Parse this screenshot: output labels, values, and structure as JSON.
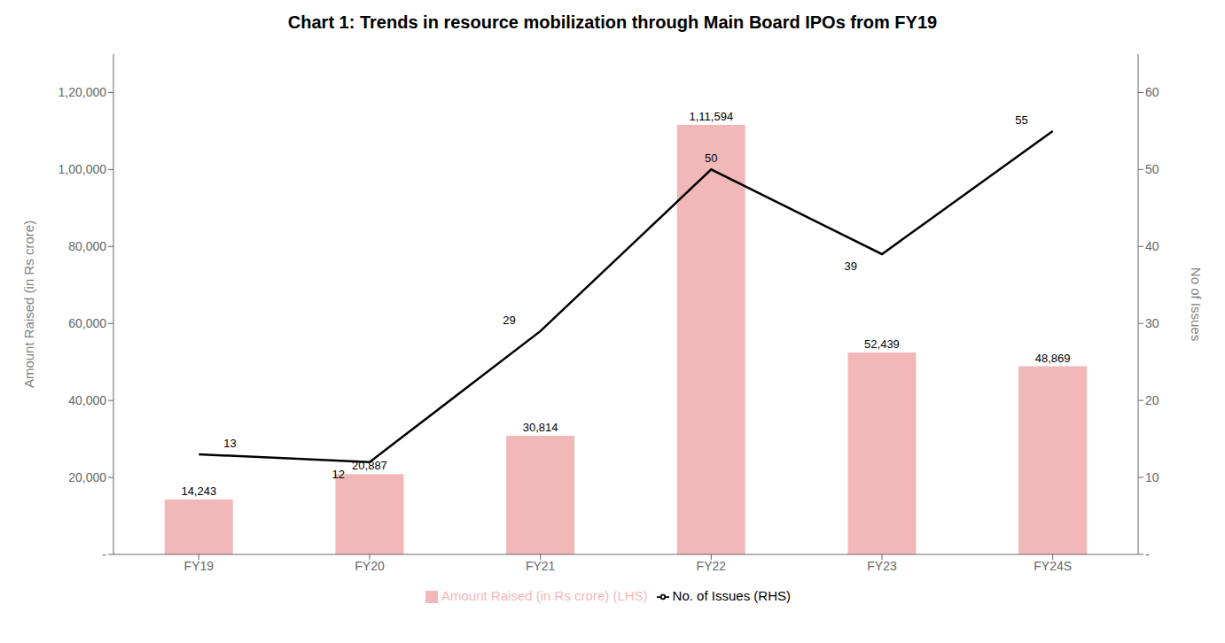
{
  "chart_data": {
    "type": "bar",
    "title": "Chart 1: Trends in resource mobilization through Main Board IPOs from FY19",
    "categories": [
      "FY19",
      "FY20",
      "FY21",
      "FY22",
      "FY23",
      "FY24S"
    ],
    "series": [
      {
        "name": "Amount Raised (in Rs crore)  (LHS)",
        "type": "bar",
        "color": "#f2b8b8",
        "values": [
          14243,
          20887,
          30814,
          111594,
          52439,
          48869
        ],
        "value_labels": [
          "14,243",
          "20,887",
          "30,814",
          "1,11,594",
          "52,439",
          "48,869"
        ],
        "data_labels": true
      },
      {
        "name": "No. of Issues (RHS)",
        "type": "line",
        "axis": "y2",
        "color": "#000000",
        "marker": "none",
        "values": [
          13,
          12,
          29,
          50,
          39,
          55
        ],
        "data_labels": true
      }
    ],
    "ylabel": "Amount Raised (in Rs crore)",
    "y2label": "No of Issues",
    "ylim": [
      0,
      130000
    ],
    "yticks": [
      {
        "value": 0,
        "label": "-"
      },
      {
        "value": 20000,
        "label": "20,000"
      },
      {
        "value": 40000,
        "label": "40,000"
      },
      {
        "value": 60000,
        "label": "60,000"
      },
      {
        "value": 80000,
        "label": "80,000"
      },
      {
        "value": 100000,
        "label": "1,00,000"
      },
      {
        "value": 120000,
        "label": "1,20,000"
      }
    ],
    "y2lim": [
      0,
      65
    ],
    "y2ticks": [
      {
        "value": 0,
        "label": "-"
      },
      10,
      20,
      30,
      40,
      50,
      60
    ],
    "grid": false,
    "legend": "bottom"
  }
}
